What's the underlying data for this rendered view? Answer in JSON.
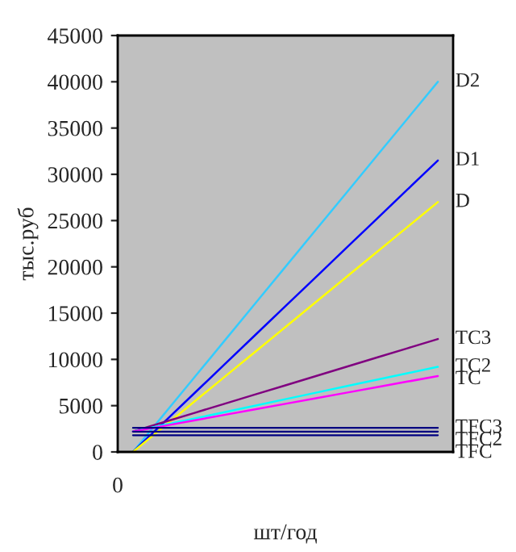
{
  "chart_data": {
    "type": "line",
    "xlabel": "шт/год",
    "ylabel": "тыс.руб",
    "categories": [
      null,
      null,
      null,
      null,
      null,
      null,
      null,
      null,
      null,
      null,
      null
    ],
    "annotations": [
      "0"
    ],
    "ylim": [
      0,
      45000
    ],
    "yticks": [
      0,
      5000,
      10000,
      15000,
      20000,
      25000,
      30000,
      35000,
      40000,
      45000
    ],
    "grid": false,
    "legend": false,
    "marker": "none",
    "line_style": "solid",
    "series": [
      {
        "name": "D2",
        "color": "#33ccff",
        "values": [
          0,
          4000,
          8000,
          12000,
          16000,
          20000,
          24000,
          28000,
          32000,
          36000,
          40000
        ]
      },
      {
        "name": "D1",
        "color": "#0000ff",
        "values": [
          0,
          3150,
          6300,
          9450,
          12600,
          15750,
          18900,
          22050,
          25200,
          28350,
          31500
        ]
      },
      {
        "name": "D",
        "color": "#ffff00",
        "values": [
          0,
          2700,
          5400,
          8100,
          10800,
          13500,
          16200,
          18900,
          21600,
          24300,
          27000
        ]
      },
      {
        "name": "TC3",
        "color": "#800080",
        "values": [
          2200,
          3200,
          4200,
          5200,
          6200,
          7200,
          8200,
          9200,
          10200,
          11200,
          12200
        ]
      },
      {
        "name": "TC2",
        "color": "#00ffff",
        "values": [
          2200,
          2900,
          3600,
          4300,
          5000,
          5700,
          6400,
          7100,
          7800,
          8500,
          9200
        ]
      },
      {
        "name": "TC",
        "color": "#ff00ff",
        "values": [
          2200,
          2800,
          3400,
          4000,
          4600,
          5200,
          5800,
          6400,
          7000,
          7600,
          8200
        ]
      },
      {
        "name": "TFC3",
        "color": "#000080",
        "values": [
          2600,
          2600,
          2600,
          2600,
          2600,
          2600,
          2600,
          2600,
          2600,
          2600,
          2600
        ]
      },
      {
        "name": "TFC2",
        "color": "#000080",
        "values": [
          2200,
          2200,
          2200,
          2200,
          2200,
          2200,
          2200,
          2200,
          2200,
          2200,
          2200
        ]
      },
      {
        "name": "TFC",
        "color": "#000080",
        "values": [
          1800,
          1800,
          1800,
          1800,
          1800,
          1800,
          1800,
          1800,
          1800,
          1800,
          1800
        ]
      }
    ]
  }
}
